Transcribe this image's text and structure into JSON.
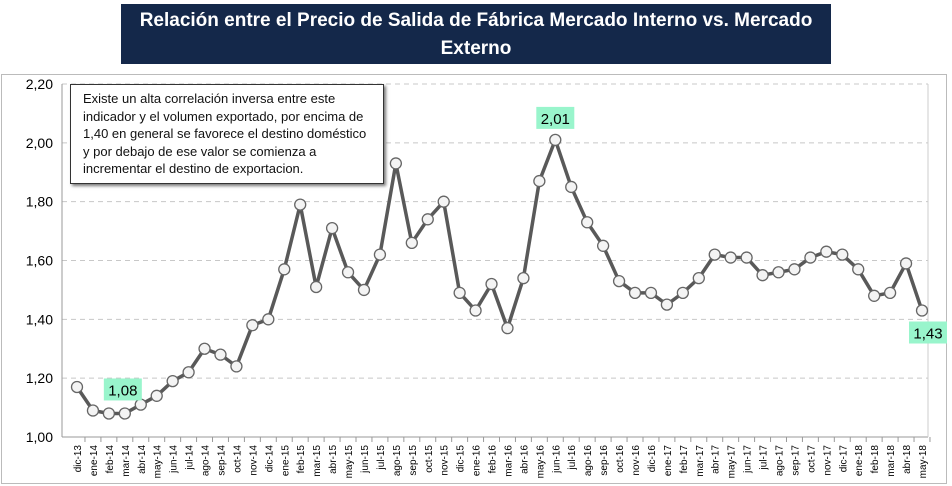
{
  "title": "Relación  entre el Precio de Salida de Fábrica Mercado Interno vs. Mercado Externo",
  "note": "Existe un alta correlación inversa entre este indicador y el volumen exportado, por encima de 1,40 en general se favorece el destino doméstico y por debajo de ese valor se comienza a incrementar el destino de exportacion.",
  "colors": {
    "title_bg": "#14284a",
    "line": "#595959",
    "label_bg": "#99f5cc"
  },
  "chart_data": {
    "type": "line",
    "title": "Relación  entre el Precio de Salida de Fábrica Mercado Interno vs. Mercado Externo",
    "xlabel": "",
    "ylabel": "",
    "ylim": [
      1.0,
      2.2
    ],
    "yticks": [
      "1,00",
      "1,20",
      "1,40",
      "1,60",
      "1,80",
      "2,00",
      "2,20"
    ],
    "grid": true,
    "categories": [
      "dic-13",
      "ene-14",
      "feb-14",
      "mar-14",
      "abr-14",
      "may-14",
      "jun-14",
      "jul-14",
      "ago-14",
      "sep-14",
      "oct-14",
      "nov-14",
      "dic-14",
      "ene-15",
      "feb-15",
      "mar-15",
      "abr-15",
      "may-15",
      "jun-15",
      "jul-15",
      "ago-15",
      "sep-15",
      "oct-15",
      "nov-15",
      "dic-15",
      "ene-16",
      "feb-16",
      "mar-16",
      "abr-16",
      "may-16",
      "jun-16",
      "jul-16",
      "ago-16",
      "sep-16",
      "oct-16",
      "nov-16",
      "dic-16",
      "ene-17",
      "feb-17",
      "mar-17",
      "abr-17",
      "may-17",
      "jun-17",
      "jul-17",
      "ago-17",
      "sep-17",
      "oct-17",
      "nov-17",
      "dic-17",
      "ene-18",
      "feb-18",
      "mar-18",
      "abr-18",
      "may-18"
    ],
    "values": [
      1.17,
      1.09,
      1.08,
      1.08,
      1.11,
      1.14,
      1.19,
      1.22,
      1.3,
      1.28,
      1.24,
      1.38,
      1.4,
      1.57,
      1.79,
      1.51,
      1.71,
      1.56,
      1.5,
      1.62,
      1.93,
      1.66,
      1.74,
      1.8,
      1.49,
      1.43,
      1.52,
      1.37,
      1.54,
      1.87,
      2.01,
      1.85,
      1.73,
      1.65,
      1.53,
      1.49,
      1.49,
      1.45,
      1.49,
      1.54,
      1.62,
      1.61,
      1.61,
      1.55,
      1.56,
      1.57,
      1.61,
      1.63,
      1.62,
      1.57,
      1.48,
      1.49,
      1.59,
      1.43
    ],
    "annotations": [
      {
        "index": 3,
        "text": "1,08"
      },
      {
        "index": 30,
        "text": "2,01"
      },
      {
        "index": 53,
        "text": "1,43"
      }
    ]
  }
}
